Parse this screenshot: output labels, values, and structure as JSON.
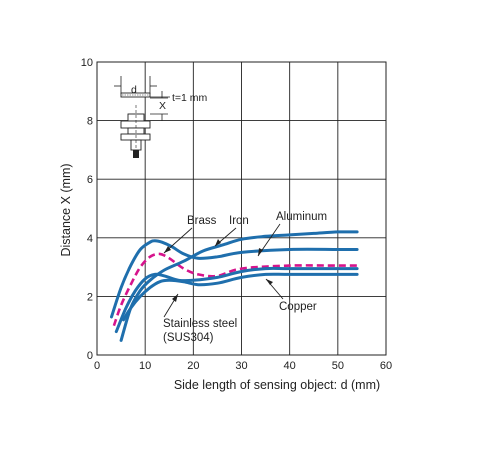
{
  "chart_data": {
    "type": "line",
    "xlabel": "Side length of sensing object: d (mm)",
    "ylabel": "Distance X (mm)",
    "xlim": [
      0,
      60
    ],
    "ylim": [
      0,
      10
    ],
    "xticks": [
      "0",
      "10",
      "20",
      "30",
      "40",
      "50",
      "60"
    ],
    "yticks": [
      "0",
      "2",
      "4",
      "6",
      "8",
      "10"
    ],
    "grid": true,
    "colors": {
      "solid": "#1f6fad",
      "dashed": "#d6148c",
      "grid": "#222222"
    },
    "series": [
      {
        "name": "Brass",
        "style": "dashed",
        "color": "#d6148c",
        "x": [
          3.5,
          5,
          7,
          9,
          11,
          13,
          15,
          18,
          21,
          25,
          30,
          40,
          50,
          54
        ],
        "y": [
          1.0,
          1.7,
          2.4,
          3.0,
          3.35,
          3.45,
          3.3,
          2.95,
          2.75,
          2.7,
          2.95,
          3.05,
          3.05,
          3.05
        ]
      },
      {
        "name": "Iron",
        "style": "solid",
        "color": "#1f6fad",
        "x": [
          3,
          5,
          7,
          9,
          11,
          12,
          13.5,
          15.5,
          18,
          21,
          25,
          30,
          40,
          50,
          54
        ],
        "y": [
          1.3,
          2.3,
          3.05,
          3.6,
          3.85,
          3.9,
          3.85,
          3.7,
          3.45,
          3.3,
          3.35,
          3.5,
          3.6,
          3.6,
          3.6
        ]
      },
      {
        "name": "Aluminum",
        "style": "solid",
        "color": "#1f6fad",
        "x": [
          5,
          7,
          9,
          11,
          14,
          18,
          22,
          26,
          30,
          35,
          40,
          45,
          50,
          54
        ],
        "y": [
          0.5,
          1.6,
          2.2,
          2.55,
          2.9,
          3.2,
          3.55,
          3.75,
          3.95,
          4.05,
          4.1,
          4.15,
          4.2,
          4.2
        ]
      },
      {
        "name": "Copper",
        "style": "solid",
        "color": "#1f6fad",
        "x": [
          5.5,
          7,
          9,
          11,
          13,
          15,
          18,
          21,
          25,
          30,
          35,
          40,
          50,
          54
        ],
        "y": [
          1.2,
          1.6,
          2.0,
          2.3,
          2.5,
          2.55,
          2.5,
          2.4,
          2.45,
          2.65,
          2.75,
          2.75,
          2.75,
          2.75
        ]
      },
      {
        "name": "Stainless steel (SUS304)",
        "style": "solid",
        "color": "#1f6fad",
        "x": [
          4,
          6,
          8,
          10,
          12,
          14,
          17,
          20,
          25,
          30,
          35,
          40,
          50,
          54
        ],
        "y": [
          0.8,
          1.6,
          2.2,
          2.6,
          2.75,
          2.7,
          2.55,
          2.55,
          2.65,
          2.85,
          2.95,
          2.95,
          2.95,
          2.95
        ]
      }
    ],
    "annotations": {
      "brass": "Brass",
      "iron": "Iron",
      "aluminum": "Aluminum",
      "copper": "Copper",
      "stainless_line1": "Stainless steel",
      "stainless_line2": "(SUS304)"
    },
    "inset": {
      "d_symbol": "d",
      "x_symbol": "X",
      "thickness": "t=1 mm"
    }
  }
}
